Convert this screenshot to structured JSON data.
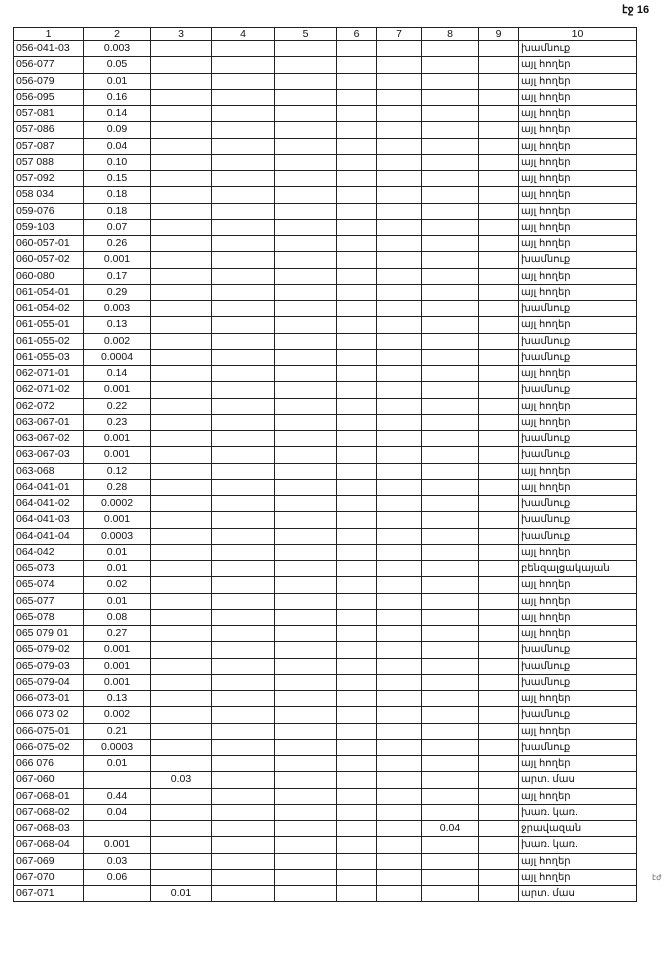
{
  "page_number": "էջ 16",
  "side_mark": "էժ",
  "columns": [
    "1",
    "2",
    "3",
    "4",
    "5",
    "6",
    "7",
    "8",
    "9",
    "10"
  ],
  "rows": [
    [
      "056-041-03",
      "0.003",
      "",
      "",
      "",
      "",
      "",
      "",
      "",
      "խամնուք"
    ],
    [
      "056-077",
      "0.05",
      "",
      "",
      "",
      "",
      "",
      "",
      "",
      "այլ հողեր"
    ],
    [
      "056-079",
      "0.01",
      "",
      "",
      "",
      "",
      "",
      "",
      "",
      "այլ հողեր"
    ],
    [
      "056-095",
      "0.16",
      "",
      "",
      "",
      "",
      "",
      "",
      "",
      "այլ հողեր"
    ],
    [
      "057-081",
      "0.14",
      "",
      "",
      "",
      "",
      "",
      "",
      "",
      "այլ հողեր"
    ],
    [
      "057-086",
      "0.09",
      "",
      "",
      "",
      "",
      "",
      "",
      "",
      "այլ հողեր"
    ],
    [
      "057-087",
      "0.04",
      "",
      "",
      "",
      "",
      "",
      "",
      "",
      "այլ հողեր"
    ],
    [
      "057 088",
      "0.10",
      "",
      "",
      "",
      "",
      "",
      "",
      "",
      "այլ հողեր"
    ],
    [
      "057-092",
      "0.15",
      "",
      "",
      "",
      "",
      "",
      "",
      "",
      "այլ հողեր"
    ],
    [
      "058 034",
      "0.18",
      "",
      "",
      "",
      "",
      "",
      "",
      "",
      "այլ հողեր"
    ],
    [
      "059-076",
      "0.18",
      "",
      "",
      "",
      "",
      "",
      "",
      "",
      "այլ հողեր"
    ],
    [
      "059-103",
      "0.07",
      "",
      "",
      "",
      "",
      "",
      "",
      "",
      "այլ հողեր"
    ],
    [
      "060-057-01",
      "0.26",
      "",
      "",
      "",
      "",
      "",
      "",
      "",
      "այլ հողեր"
    ],
    [
      "060-057-02",
      "0.001",
      "",
      "",
      "",
      "",
      "",
      "",
      "",
      "խամնուք"
    ],
    [
      "060-080",
      "0.17",
      "",
      "",
      "",
      "",
      "",
      "",
      "",
      "այլ հողեր"
    ],
    [
      "061-054-01",
      "0.29",
      "",
      "",
      "",
      "",
      "",
      "",
      "",
      "այլ հողեր"
    ],
    [
      "061-054-02",
      "0.003",
      "",
      "",
      "",
      "",
      "",
      "",
      "",
      "խամնուք"
    ],
    [
      "061-055-01",
      "0.13",
      "",
      "",
      "",
      "",
      "",
      "",
      "",
      "այլ հողեր"
    ],
    [
      "061-055-02",
      "0.002",
      "",
      "",
      "",
      "",
      "",
      "",
      "",
      "խամնուք"
    ],
    [
      "061-055-03",
      "0.0004",
      "",
      "",
      "",
      "",
      "",
      "",
      "",
      "խամնուք"
    ],
    [
      "062-071-01",
      "0.14",
      "",
      "",
      "",
      "",
      "",
      "",
      "",
      "այլ հողեր"
    ],
    [
      "062-071-02",
      "0.001",
      "",
      "",
      "",
      "",
      "",
      "",
      "",
      "խամնուք"
    ],
    [
      "062-072",
      "0.22",
      "",
      "",
      "",
      "",
      "",
      "",
      "",
      "այլ հողեր"
    ],
    [
      "063-067-01",
      "0.23",
      "",
      "",
      "",
      "",
      "",
      "",
      "",
      "այլ հողեր"
    ],
    [
      "063-067-02",
      "0.001",
      "",
      "",
      "",
      "",
      "",
      "",
      "",
      "խամնուք"
    ],
    [
      "063-067-03",
      "0.001",
      "",
      "",
      "",
      "",
      "",
      "",
      "",
      "խամնուք"
    ],
    [
      "063-068",
      "0.12",
      "",
      "",
      "",
      "",
      "",
      "",
      "",
      "այլ հողեր"
    ],
    [
      "064-041-01",
      "0.28",
      "",
      "",
      "",
      "",
      "",
      "",
      "",
      "այլ հողեր"
    ],
    [
      "064-041-02",
      "0.0002",
      "",
      "",
      "",
      "",
      "",
      "",
      "",
      "խամնուք"
    ],
    [
      "064-041-03",
      "0.001",
      "",
      "",
      "",
      "",
      "",
      "",
      "",
      "խամնուք"
    ],
    [
      "064-041-04",
      "0.0003",
      "",
      "",
      "",
      "",
      "",
      "",
      "",
      "խամնուք"
    ],
    [
      "064-042",
      "0.01",
      "",
      "",
      "",
      "",
      "",
      "",
      "",
      "այլ հողեր"
    ],
    [
      "065-073",
      "0.01",
      "",
      "",
      "",
      "",
      "",
      "",
      "",
      "բենզալցակայան"
    ],
    [
      "065-074",
      "0.02",
      "",
      "",
      "",
      "",
      "",
      "",
      "",
      "այլ հողեր"
    ],
    [
      "065-077",
      "0.01",
      "",
      "",
      "",
      "",
      "",
      "",
      "",
      "այլ հողեր"
    ],
    [
      "065-078",
      "0.08",
      "",
      "",
      "",
      "",
      "",
      "",
      "",
      "այլ հողեր"
    ],
    [
      "065 079 01",
      "0.27",
      "",
      "",
      "",
      "",
      "",
      "",
      "",
      "այլ հողեր"
    ],
    [
      "065-079-02",
      "0.001",
      "",
      "",
      "",
      "",
      "",
      "",
      "",
      "խամնուք"
    ],
    [
      "065-079-03",
      "0.001",
      "",
      "",
      "",
      "",
      "",
      "",
      "",
      "խամնուք"
    ],
    [
      "065-079-04",
      "0.001",
      "",
      "",
      "",
      "",
      "",
      "",
      "",
      "խամնուք"
    ],
    [
      "066-073-01",
      "0.13",
      "",
      "",
      "",
      "",
      "",
      "",
      "",
      "այլ հողեր"
    ],
    [
      "066 073 02",
      "0.002",
      "",
      "",
      "",
      "",
      "",
      "",
      "",
      "խամնուք"
    ],
    [
      "066-075-01",
      "0.21",
      "",
      "",
      "",
      "",
      "",
      "",
      "",
      "այլ հողեր"
    ],
    [
      "066-075-02",
      "0.0003",
      "",
      "",
      "",
      "",
      "",
      "",
      "",
      "խամնուք"
    ],
    [
      "066 076",
      "0.01",
      "",
      "",
      "",
      "",
      "",
      "",
      "",
      "այլ հողեր"
    ],
    [
      "067-060",
      "",
      "0.03",
      "",
      "",
      "",
      "",
      "",
      "",
      "արտ. մաս"
    ],
    [
      "067-068-01",
      "0.44",
      "",
      "",
      "",
      "",
      "",
      "",
      "",
      "այլ հողեր"
    ],
    [
      "067-068-02",
      "0.04",
      "",
      "",
      "",
      "",
      "",
      "",
      "",
      "խառ. կառ."
    ],
    [
      "067-068-03",
      "",
      "",
      "",
      "",
      "",
      "",
      "0.04",
      "",
      "ջրավազան"
    ],
    [
      "067-068-04",
      "0.001",
      "",
      "",
      "",
      "",
      "",
      "",
      "",
      "խառ. կառ."
    ],
    [
      "067-069",
      "0.03",
      "",
      "",
      "",
      "",
      "",
      "",
      "",
      "այլ հողեր"
    ],
    [
      "067-070",
      "0.06",
      "",
      "",
      "",
      "",
      "",
      "",
      "",
      "այլ հողեր"
    ],
    [
      "067-071",
      "",
      "0.01",
      "",
      "",
      "",
      "",
      "",
      "",
      "արտ. մաս"
    ]
  ]
}
